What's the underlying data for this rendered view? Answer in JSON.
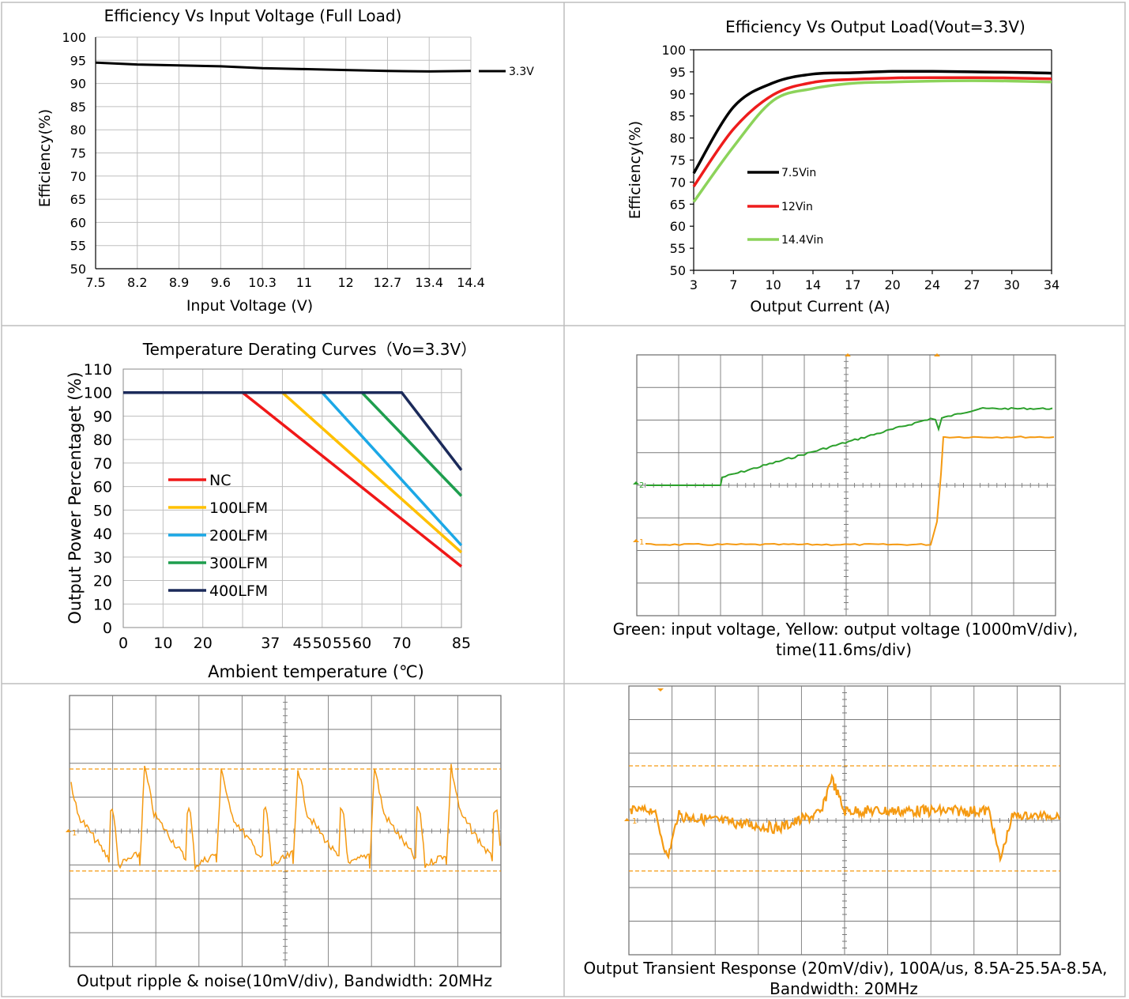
{
  "colors": {
    "black": "#000000",
    "red": "#ee1c1c",
    "green_light": "#8cd35a",
    "nc": "#f01818",
    "lfm100": "#ffc000",
    "lfm200": "#1ca8e6",
    "lfm300": "#1e9e4e",
    "lfm400": "#1b2a5a",
    "scope_green": "#2ca02c",
    "scope_orange": "#f59a12"
  },
  "chart_data": [
    {
      "id": "eff_vs_vin",
      "type": "line",
      "title": "Efficiency Vs Input Voltage (Full Load)",
      "xlabel": "Input Voltage (V)",
      "ylabel": "Efficiency(%)",
      "categories": [
        "7.5",
        "8.2",
        "8.9",
        "9.6",
        "10.3",
        "11",
        "12",
        "12.7",
        "13.4",
        "14.4"
      ],
      "ylim": [
        50,
        100
      ],
      "yticks": [
        "50",
        "55",
        "60",
        "65",
        "70",
        "75",
        "80",
        "85",
        "90",
        "95",
        "100"
      ],
      "grid": true,
      "legend_position": "right",
      "series": [
        {
          "name": "3.3V",
          "color": "#000000",
          "values": [
            94.5,
            94.1,
            93.9,
            93.7,
            93.3,
            93.1,
            92.9,
            92.7,
            92.6,
            92.7
          ]
        }
      ]
    },
    {
      "id": "eff_vs_load",
      "type": "line",
      "title": "Efficiency Vs Output Load(Vout=3.3V)",
      "xlabel": "Output Current (A)",
      "ylabel": "Efficiency(%)",
      "categories": [
        "3",
        "7",
        "10",
        "14",
        "17",
        "20",
        "24",
        "27",
        "30",
        "34"
      ],
      "ylim": [
        50,
        100
      ],
      "yticks": [
        "50",
        "55",
        "60",
        "65",
        "70",
        "75",
        "80",
        "85",
        "90",
        "95",
        "100"
      ],
      "grid": false,
      "legend_position": "center-left",
      "series": [
        {
          "name": "7.5Vin",
          "color": "#000000",
          "values": [
            72,
            87,
            92.5,
            94.5,
            94.8,
            95.1,
            95.1,
            95,
            94.9,
            94.7
          ]
        },
        {
          "name": "12Vin",
          "color": "#ee1c1c",
          "values": [
            69,
            82,
            89.8,
            92.6,
            93.3,
            93.6,
            93.7,
            93.7,
            93.6,
            93.4
          ]
        },
        {
          "name": "14.4Vin",
          "color": "#8cd35a",
          "values": [
            65.5,
            78,
            88.5,
            91.2,
            92.4,
            92.7,
            92.9,
            93,
            92.9,
            92.7
          ]
        }
      ]
    },
    {
      "id": "derating",
      "type": "line",
      "title": "Temperature Derating Curves（Vo=3.3V）",
      "xlabel": "Ambient temperature (℃)",
      "ylabel": "Output Power Percentaget (%)",
      "x": [
        "0",
        "10",
        "20",
        "37",
        "45",
        "50",
        "55",
        "60",
        "70",
        "85"
      ],
      "xlim": [
        0,
        85
      ],
      "ylim": [
        0,
        110
      ],
      "yticks": [
        "0",
        "10",
        "20",
        "30",
        "40",
        "50",
        "60",
        "70",
        "80",
        "90",
        "100",
        "110"
      ],
      "grid": true,
      "legend_position": "left",
      "series": [
        {
          "name": "NC",
          "color": "#f01818",
          "points": [
            [
              0,
              100
            ],
            [
              30,
              100
            ],
            [
              85,
              26
            ]
          ]
        },
        {
          "name": "100LFM",
          "color": "#ffc000",
          "points": [
            [
              0,
              100
            ],
            [
              40,
              100
            ],
            [
              85,
              32
            ]
          ]
        },
        {
          "name": "200LFM",
          "color": "#1ca8e6",
          "points": [
            [
              0,
              100
            ],
            [
              50,
              100
            ],
            [
              85,
              35
            ]
          ]
        },
        {
          "name": "300LFM",
          "color": "#1e9e4e",
          "points": [
            [
              0,
              100
            ],
            [
              60,
              100
            ],
            [
              85,
              56
            ]
          ]
        },
        {
          "name": "400LFM",
          "color": "#1b2a5a",
          "points": [
            [
              0,
              100
            ],
            [
              70,
              100
            ],
            [
              85,
              67
            ]
          ]
        }
      ]
    }
  ],
  "scopes": {
    "startup_caption_1": "Green: input voltage,   Yellow: output voltage (1000mV/div),",
    "startup_caption_2": "time(11.6ms/div)",
    "ripple_caption": "Output ripple & noise(10mV/div),   Bandwidth: 20MHz",
    "transient_caption_1": "Output Transient Response (20mV/div),    100A/us, 8.5A-25.5A-8.5A,",
    "transient_caption_2": "Bandwidth: 20MHz",
    "ch1_marker": "1",
    "ch2_marker": "2"
  }
}
